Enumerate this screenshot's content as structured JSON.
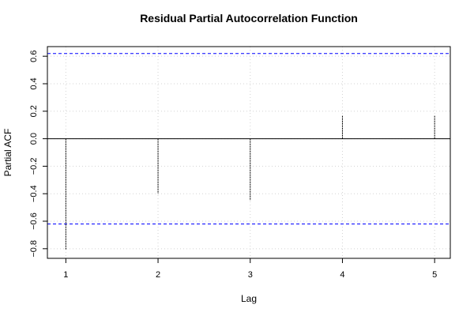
{
  "chart_data": {
    "type": "bar",
    "title": "Residual Partial Autocorrelation Function",
    "xlabel": "Lag",
    "ylabel": "Partial ACF",
    "x": [
      1,
      2,
      3,
      4,
      5
    ],
    "values": [
      -0.81,
      -0.4,
      -0.45,
      0.17,
      0.17
    ],
    "xlim": [
      0.8,
      5.17
    ],
    "ylim": [
      -0.87,
      0.67
    ],
    "xticks": [
      1,
      2,
      3,
      4,
      5
    ],
    "yticks": [
      -0.8,
      -0.6,
      -0.4,
      -0.2,
      0.0,
      0.2,
      0.4,
      0.6
    ],
    "ytick_labels": [
      "−0.8",
      "−0.6",
      "−0.4",
      "−0.2",
      "0.0",
      "0.2",
      "0.4",
      "0.6"
    ],
    "confidence_bounds": [
      0.62,
      -0.62
    ],
    "grid": true,
    "colors": {
      "bars": "#000000",
      "bounds": "#0000ff",
      "grid": "#d3d3d3",
      "zero_line": "#000000"
    }
  }
}
